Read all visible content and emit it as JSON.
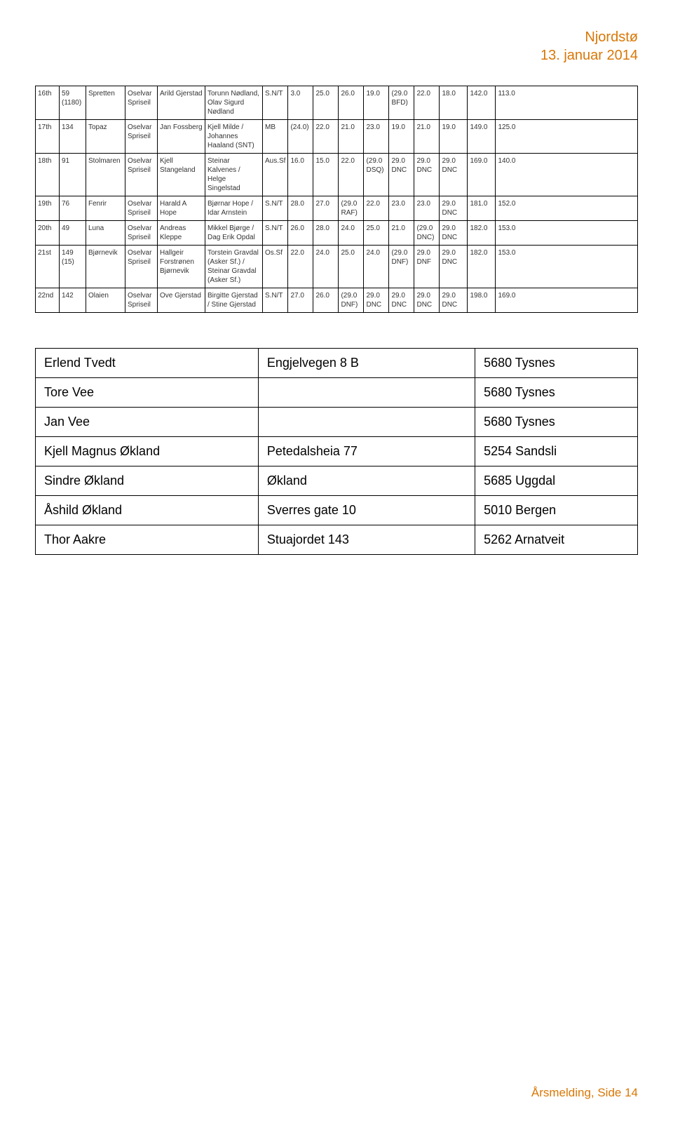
{
  "header": {
    "line1": "Njordstø",
    "line2": "13. januar 2014"
  },
  "results": {
    "rows": [
      {
        "place": "16th",
        "sail": "59 (1180)",
        "boat": "Spretten",
        "class": "Oselvar Spriseil",
        "helm": "Arild Gjerstad",
        "crew": "Torunn Nødland, Olav Sigurd Nødland",
        "rating": "S.N/T",
        "r": [
          "3.0",
          "25.0",
          "26.0",
          "19.0",
          "(29.0 BFD)",
          "22.0",
          "18.0",
          "142.0",
          "113.0"
        ]
      },
      {
        "place": "17th",
        "sail": "134",
        "boat": "Topaz",
        "class": "Oselvar Spriseil",
        "helm": "Jan Fossberg",
        "crew": "Kjell Milde / Johannes Haaland (SNT)",
        "rating": "MB",
        "r": [
          "(24.0)",
          "22.0",
          "21.0",
          "23.0",
          "19.0",
          "21.0",
          "19.0",
          "149.0",
          "125.0"
        ]
      },
      {
        "place": "18th",
        "sail": "91",
        "boat": "Stolmaren",
        "class": "Oselvar Spriseil",
        "helm": "Kjell Stangeland",
        "crew": "Steinar Kalvenes / Helge Singelstad",
        "rating": "Aus.Sf",
        "r": [
          "16.0",
          "15.0",
          "22.0",
          "(29.0 DSQ)",
          "29.0 DNC",
          "29.0 DNC",
          "29.0 DNC",
          "169.0",
          "140.0"
        ]
      },
      {
        "place": "19th",
        "sail": "76",
        "boat": "Fenrir",
        "class": "Oselvar Spriseil",
        "helm": "Harald A Hope",
        "crew": "Bjørnar Hope / Idar Arnstein",
        "rating": "S.N/T",
        "r": [
          "28.0",
          "27.0",
          "(29.0 RAF)",
          "22.0",
          "23.0",
          "23.0",
          "29.0 DNC",
          "181.0",
          "152.0"
        ]
      },
      {
        "place": "20th",
        "sail": "49",
        "boat": "Luna",
        "class": "Oselvar Spriseil",
        "helm": "Andreas Kleppe",
        "crew": "Mikkel Bjørge / Dag Erik Opdal",
        "rating": "S.N/T",
        "r": [
          "26.0",
          "28.0",
          "24.0",
          "25.0",
          "21.0",
          "(29.0 DNC)",
          "29.0 DNC",
          "182.0",
          "153.0"
        ]
      },
      {
        "place": "21st",
        "sail": "149 (15)",
        "boat": "Bjørnevik",
        "class": "Oselvar Spriseil",
        "helm": "Hallgeir Forstrønen Bjørnevik",
        "crew": "Torstein Gravdal (Asker Sf.) / Steinar Gravdal (Asker Sf.)",
        "rating": "Os.Sf",
        "r": [
          "22.0",
          "24.0",
          "25.0",
          "24.0",
          "(29.0 DNF)",
          "29.0 DNF",
          "29.0 DNC",
          "182.0",
          "153.0"
        ]
      },
      {
        "place": "22nd",
        "sail": "142",
        "boat": "Olaien",
        "class": "Oselvar Spriseil",
        "helm": "Ove Gjerstad",
        "crew": "Birgitte Gjerstad / Stine Gjerstad",
        "rating": "S.N/T",
        "r": [
          "27.0",
          "26.0",
          "(29.0 DNF)",
          "29.0 DNC",
          "29.0 DNC",
          "29.0 DNC",
          "29.0 DNC",
          "198.0",
          "169.0"
        ]
      }
    ]
  },
  "contacts": {
    "rows": [
      {
        "name": "Erlend Tvedt",
        "addr": "Engjelvegen 8 B",
        "post": "5680 Tysnes"
      },
      {
        "name": "Tore Vee",
        "addr": "",
        "post": "5680 Tysnes"
      },
      {
        "name": "Jan Vee",
        "addr": "",
        "post": "5680 Tysnes"
      },
      {
        "name": "Kjell Magnus Økland",
        "addr": "Petedalsheia 77",
        "post": "5254 Sandsli"
      },
      {
        "name": "Sindre Økland",
        "addr": "Økland",
        "post": "5685 Uggdal"
      },
      {
        "name": "Åshild Økland",
        "addr": "Sverres gate 10",
        "post": "5010 Bergen"
      },
      {
        "name": "Thor Aakre",
        "addr": "Stuajordet 143",
        "post": "5262 Arnatveit"
      }
    ]
  },
  "footer": "Årsmelding, Side 14",
  "col_widths": {
    "results": [
      "34",
      "38",
      "56",
      "46",
      "68",
      "82",
      "36",
      "36",
      "36",
      "36",
      "36",
      "36",
      "36",
      "40",
      "40"
    ],
    "contacts": [
      "37%",
      "36%",
      "27%"
    ]
  }
}
